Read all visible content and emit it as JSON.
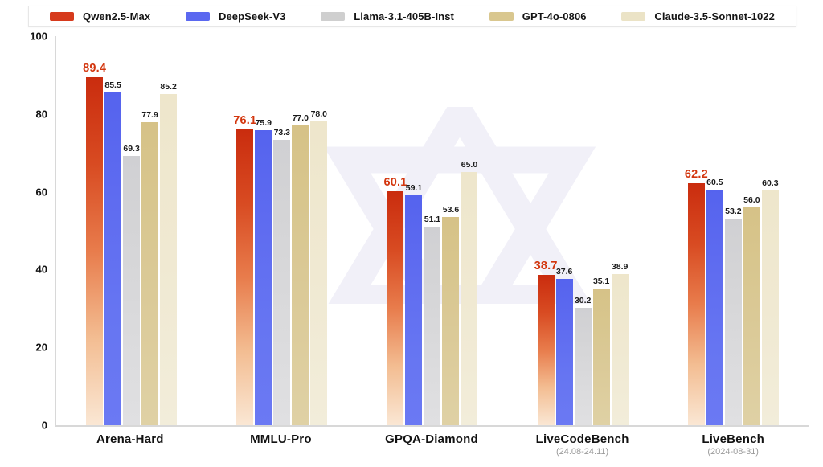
{
  "legend": {
    "items": [
      {
        "label": "Qwen2.5-Max",
        "color": "#d63a1c"
      },
      {
        "label": "DeepSeek-V3",
        "color": "#5b68f0"
      },
      {
        "label": "Llama-3.1-405B-Inst",
        "color": "#cfcfcf"
      },
      {
        "label": "GPT-4o-0806",
        "color": "#dbc astro"
      },
      {
        "label": "Claude-3.5-Sonnet-1022",
        "color": "#ebe3c6"
      }
    ]
  },
  "chart_data": {
    "type": "bar",
    "title": "",
    "categories": [
      {
        "label": "Arena-Hard",
        "sublabel": ""
      },
      {
        "label": "MMLU-Pro",
        "sublabel": ""
      },
      {
        "label": "GPQA-Diamond",
        "sublabel": ""
      },
      {
        "label": "LiveCodeBench",
        "sublabel": "(24.08-24.11)"
      },
      {
        "label": "LiveBench",
        "sublabel": "(2024-08-31)"
      }
    ],
    "series": [
      {
        "name": "Qwen2.5-Max",
        "values": [
          89.4,
          76.1,
          60.1,
          38.7,
          62.2
        ],
        "legend_color": "#d63a1c",
        "gradient": [
          "#ca2c0e",
          "#d84b22",
          "#e87c4c",
          "#f3bd92",
          "#fae7d4"
        ],
        "highlight": true,
        "value_label_color": "#d3360e"
      },
      {
        "name": "DeepSeek-V3",
        "values": [
          85.5,
          75.9,
          59.1,
          37.6,
          60.5
        ],
        "legend_color": "#5b68f0",
        "gradient": [
          "#5563ee",
          "#5f6cf0",
          "#6troub",
          "#6675f2",
          "#6b79f3"
        ],
        "highlight": false,
        "value_label_color": "#1b1b1b"
      },
      {
        "name": "Llama-3.1-405B-Inst",
        "values": [
          69.3,
          73.3,
          51.1,
          30.2,
          53.2
        ],
        "legend_color": "#cfcfcf",
        "gradient": [
          "#d0d0d3",
          "#d4d4d6",
          "#d8d8da",
          "#dcdcde",
          "#e0e0e2"
        ],
        "highlight": false,
        "value_label_color": "#1b1b1b"
      },
      {
        "name": "GPT-4o-0806",
        "values": [
          77.9,
          77.0,
          53.6,
          35.1,
          56.0
        ],
        "legend_color": "#d9c78f",
        "gradient": [
          "#d6c287",
          "#d8c68e",
          "#dac996",
          "#ddcd9d",
          "#dfd1a5"
        ],
        "highlight": false,
        "value_label_color": "#1b1b1b"
      },
      {
        "name": "Claude-3.5-Sonnet-1022",
        "values": [
          85.2,
          78.0,
          65.0,
          38.9,
          60.3
        ],
        "legend_color": "#ebe3c6",
        "gradient": [
          "#eee6cb",
          "#efe8cf",
          "#f0e9d2",
          "#f1ebd6",
          "#f2edda"
        ],
        "highlight": false,
        "value_label_color": "#1b1b1b"
      }
    ],
    "ylim": [
      0,
      100
    ],
    "yticks": [
      0,
      20,
      40,
      60,
      80,
      100
    ],
    "value_decimals": 1,
    "grid": false,
    "legend_position": "top",
    "watermark_color": "#e7e5f4"
  }
}
